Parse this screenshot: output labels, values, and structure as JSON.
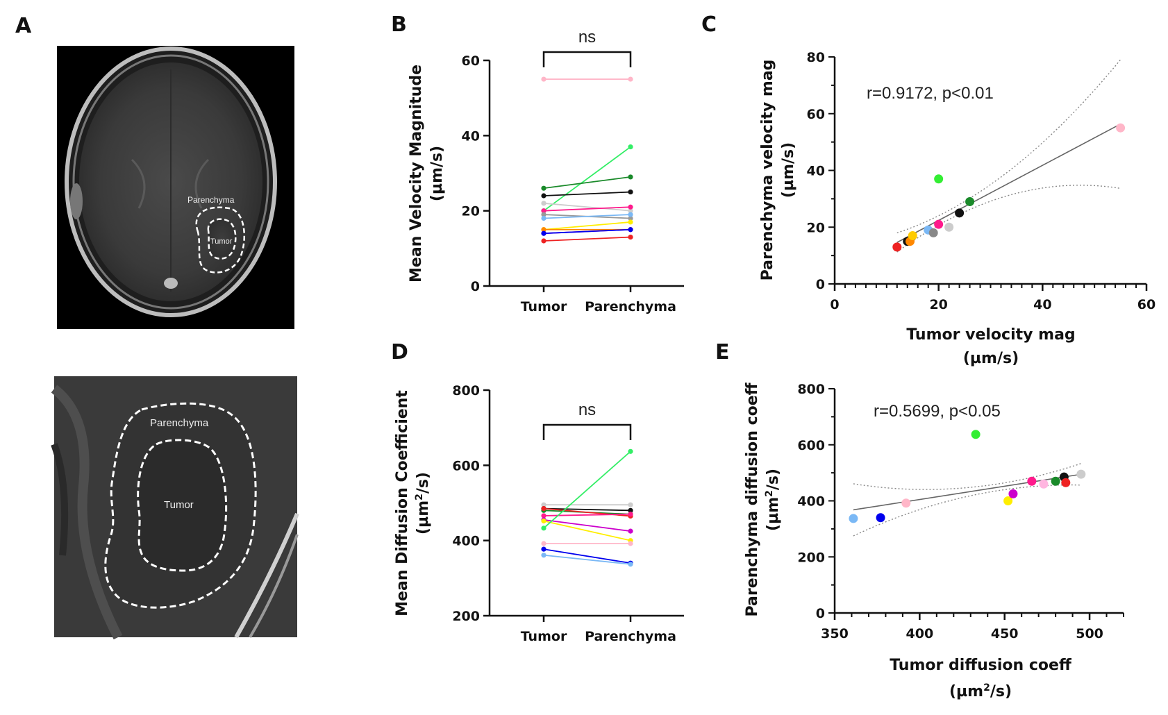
{
  "panels": {
    "a": "A",
    "b": "B",
    "c": "C",
    "d": "D",
    "e": "E"
  },
  "images": {
    "top": {
      "parenchyma_label": "Parenchyma",
      "tumor_label": "Tumor"
    },
    "bottom": {
      "parenchyma_label": "Parenchyma",
      "tumor_label": "Tumor"
    }
  },
  "chart_data": [
    {
      "id": "B",
      "type": "line",
      "subtype": "paired",
      "categories": [
        "Tumor",
        "Parenchyma"
      ],
      "ylabel_line1": "Mean  Velocity Magnitude",
      "ylabel_line2": "(µm/s)",
      "ylim": [
        0,
        60
      ],
      "yticks": [
        "0",
        "20",
        "40",
        "60"
      ],
      "significance": "ns",
      "series": [
        {
          "color": "#ffb6c8",
          "values": [
            55,
            55
          ]
        },
        {
          "color": "#33ee66",
          "values": [
            20,
            37
          ]
        },
        {
          "color": "#1a8a2a",
          "values": [
            26,
            29
          ]
        },
        {
          "color": "#111111",
          "values": [
            24,
            25
          ]
        },
        {
          "color": "#cccccc",
          "values": [
            22,
            20
          ]
        },
        {
          "color": "#ff1a8c",
          "values": [
            20,
            21
          ]
        },
        {
          "color": "#999999",
          "values": [
            19,
            18
          ]
        },
        {
          "color": "#7ab8f5",
          "values": [
            18,
            19
          ]
        },
        {
          "color": "#ffee00",
          "values": [
            15,
            17
          ]
        },
        {
          "color": "#ff8800",
          "values": [
            15,
            15
          ]
        },
        {
          "color": "#cc00cc",
          "values": [
            14,
            15
          ]
        },
        {
          "color": "#0000ee",
          "values": [
            14,
            15
          ]
        },
        {
          "color": "#ee2222",
          "values": [
            12,
            13
          ]
        }
      ]
    },
    {
      "id": "C",
      "type": "scatter",
      "xlabel_line1": "Tumor velocity mag",
      "xlabel_line2": "(µm/s)",
      "ylabel_line1": "Parenchyma velocity mag",
      "ylabel_line2": "(µm/s)",
      "xlim": [
        0,
        60
      ],
      "ylim": [
        0,
        80
      ],
      "xticks": [
        "0",
        "20",
        "40",
        "60"
      ],
      "yticks": [
        "0",
        "20",
        "40",
        "60",
        "80"
      ],
      "annotation": "r=0.9172, p<0.01",
      "fit": {
        "slope": 0.9705,
        "intercept": 2.97,
        "x_range": [
          12,
          55
        ]
      },
      "points": [
        {
          "x": 12,
          "y": 13,
          "color": "#ee2222"
        },
        {
          "x": 14,
          "y": 15,
          "color": "#111111"
        },
        {
          "x": 14.5,
          "y": 15,
          "color": "#ff8800"
        },
        {
          "x": 15,
          "y": 17,
          "color": "#ffcc00"
        },
        {
          "x": 18,
          "y": 19,
          "color": "#7ab8f5"
        },
        {
          "x": 19,
          "y": 18,
          "color": "#888888"
        },
        {
          "x": 20,
          "y": 21,
          "color": "#ff1a8c"
        },
        {
          "x": 20,
          "y": 37,
          "color": "#33ee33"
        },
        {
          "x": 22,
          "y": 20,
          "color": "#cccccc"
        },
        {
          "x": 24,
          "y": 25,
          "color": "#111111"
        },
        {
          "x": 26,
          "y": 29,
          "color": "#1a8a2a"
        },
        {
          "x": 55,
          "y": 55,
          "color": "#ffb6c8"
        }
      ]
    },
    {
      "id": "D",
      "type": "line",
      "subtype": "paired",
      "categories": [
        "Tumor",
        "Parenchyma"
      ],
      "ylabel_line1": "Mean  Diffusion Coefficient",
      "ylabel_unit_base": "(µm",
      "ylabel_unit_sup": "2",
      "ylabel_unit_end": "/s)",
      "ylim": [
        200,
        800
      ],
      "yticks": [
        "200",
        "400",
        "600",
        "800"
      ],
      "significance": "ns",
      "series": [
        {
          "color": "#cccccc",
          "values": [
            495,
            495
          ]
        },
        {
          "color": "#111111",
          "values": [
            485,
            480
          ]
        },
        {
          "color": "#1a8a2a",
          "values": [
            480,
            470
          ]
        },
        {
          "color": "#ee2222",
          "values": [
            485,
            465
          ]
        },
        {
          "color": "#ff1a8c",
          "values": [
            466,
            470
          ]
        },
        {
          "color": "#cc00cc",
          "values": [
            455,
            425
          ]
        },
        {
          "color": "#ffee00",
          "values": [
            452,
            400
          ]
        },
        {
          "color": "#33ee66",
          "values": [
            433,
            637
          ]
        },
        {
          "color": "#ffb6c8",
          "values": [
            392,
            392
          ]
        },
        {
          "color": "#0000ee",
          "values": [
            377,
            340
          ]
        },
        {
          "color": "#7ab8f5",
          "values": [
            361,
            337
          ]
        }
      ]
    },
    {
      "id": "E",
      "type": "scatter",
      "xlabel_line1": "Tumor diffusion coeff",
      "xlabel_unit_base": "(µm",
      "xlabel_unit_sup": "2",
      "xlabel_unit_end": "/s)",
      "ylabel_line1": "Parenchyma diffusion coeff",
      "ylabel_unit_base": "(µm",
      "ylabel_unit_sup": "2",
      "ylabel_unit_end": "/s)",
      "xlim": [
        350,
        520
      ],
      "ylim": [
        0,
        800
      ],
      "xticks": [
        "350",
        "400",
        "450",
        "500"
      ],
      "yticks": [
        "0",
        "200",
        "400",
        "600",
        "800"
      ],
      "annotation": "r=0.5699, p<0.05",
      "fit": {
        "slope": 0.947,
        "intercept": 26,
        "x_range": [
          361,
          495
        ]
      },
      "points": [
        {
          "x": 361,
          "y": 337,
          "color": "#7ab8f5"
        },
        {
          "x": 377,
          "y": 340,
          "color": "#0000ee"
        },
        {
          "x": 392,
          "y": 392,
          "color": "#ffb6c8"
        },
        {
          "x": 433,
          "y": 637,
          "color": "#33ee33"
        },
        {
          "x": 452,
          "y": 400,
          "color": "#ffee00"
        },
        {
          "x": 455,
          "y": 425,
          "color": "#cc00cc"
        },
        {
          "x": 466,
          "y": 470,
          "color": "#ff1a8c"
        },
        {
          "x": 473,
          "y": 460,
          "color": "#ffb6e0"
        },
        {
          "x": 480,
          "y": 470,
          "color": "#1a8a2a"
        },
        {
          "x": 485,
          "y": 485,
          "color": "#111111"
        },
        {
          "x": 486,
          "y": 465,
          "color": "#ee2222"
        },
        {
          "x": 495,
          "y": 495,
          "color": "#cccccc"
        }
      ]
    }
  ]
}
